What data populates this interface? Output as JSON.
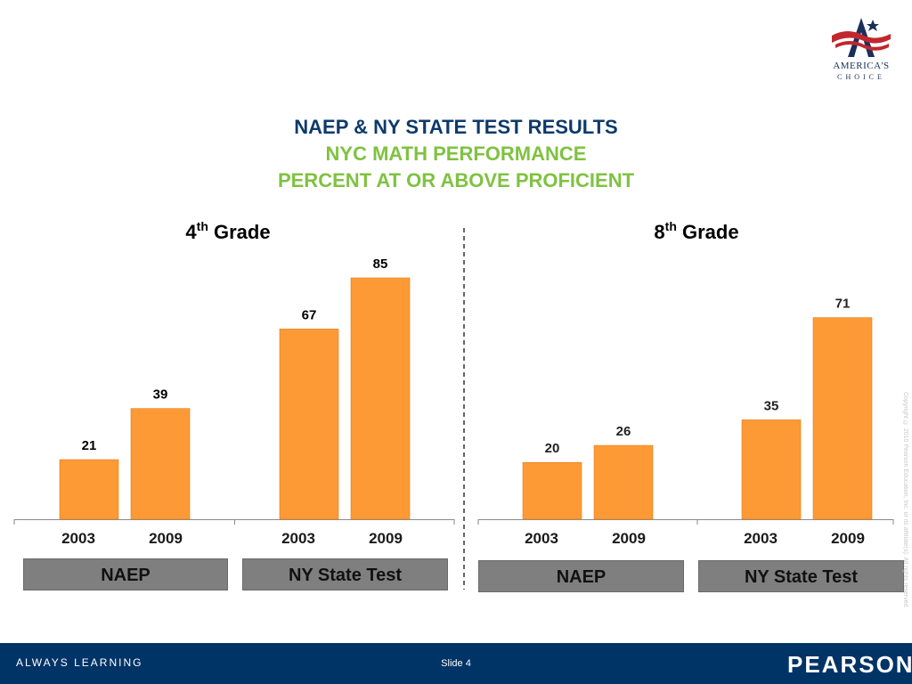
{
  "header": {
    "title_line1": "NAEP & NY STATE TEST RESULTS",
    "title_line2": "NYC MATH PERFORMANCE",
    "title_line3": "PERCENT AT OR ABOVE PROFICIENT"
  },
  "logo": {
    "name": "AMERICA'S",
    "sub": "CHOICE"
  },
  "colors": {
    "bar": "#fd9a36",
    "title_blue": "#0d3a6b",
    "title_green": "#7fc241",
    "footer": "#003366"
  },
  "chart_data": [
    {
      "type": "bar",
      "title_base": "4",
      "title_sup": "th",
      "title_rest": " Grade",
      "groups": [
        {
          "label": "NAEP",
          "categories": [
            "2003",
            "2009"
          ],
          "values": [
            21,
            39
          ]
        },
        {
          "label": "NY State Test",
          "categories": [
            "2003",
            "2009"
          ],
          "values": [
            67,
            85
          ]
        }
      ],
      "ylim": [
        0,
        85
      ]
    },
    {
      "type": "bar",
      "title_base": "8",
      "title_sup": "th",
      "title_rest": " Grade",
      "groups": [
        {
          "label": "NAEP",
          "categories": [
            "2003",
            "2009"
          ],
          "values": [
            20,
            26
          ]
        },
        {
          "label": "NY State Test",
          "categories": [
            "2003",
            "2009"
          ],
          "values": [
            35,
            71
          ]
        }
      ],
      "ylim": [
        0,
        85
      ]
    }
  ],
  "copyright": "Copyright © 2010 Pearson Education, Inc. or its affiliate(s). All rights reserved.",
  "footer": {
    "left": "ALWAYS LEARNING",
    "slide": "Slide 4",
    "brand": "PEARSON"
  }
}
